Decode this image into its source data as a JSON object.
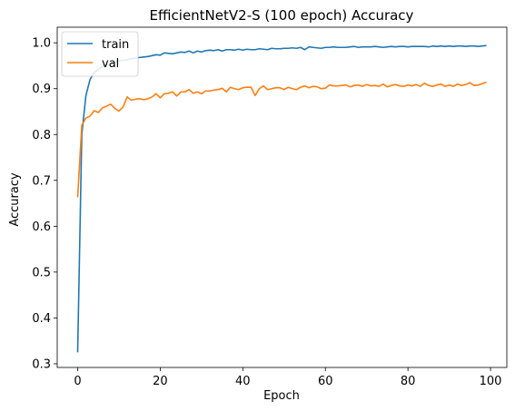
{
  "chart_data": {
    "type": "line",
    "title": "EfficientNetV2-S (100 epoch) Accuracy",
    "xlabel": "Epoch",
    "ylabel": "Accuracy",
    "xlim": [
      -4.95,
      103.95
    ],
    "ylim": [
      0.292,
      1.034
    ],
    "x_ticks": [
      0,
      20,
      40,
      60,
      80,
      100
    ],
    "y_ticks": [
      0.3,
      0.4,
      0.5,
      0.6,
      0.7,
      0.8,
      0.9,
      1.0
    ],
    "x_tick_labels": [
      "0",
      "20",
      "40",
      "60",
      "80",
      "100"
    ],
    "y_tick_labels": [
      "0.3",
      "0.4",
      "0.5",
      "0.6",
      "0.7",
      "0.8",
      "0.9",
      "1.0"
    ],
    "grid": false,
    "legend_position": "top-left",
    "series": [
      {
        "name": "train",
        "color": "#1f77b4",
        "values": [
          0.325,
          0.8,
          0.885,
          0.92,
          0.935,
          0.942,
          0.948,
          0.952,
          0.955,
          0.958,
          0.96,
          0.962,
          0.963,
          0.965,
          0.967,
          0.968,
          0.969,
          0.97,
          0.972,
          0.974,
          0.973,
          0.978,
          0.977,
          0.976,
          0.978,
          0.98,
          0.979,
          0.982,
          0.978,
          0.982,
          0.98,
          0.983,
          0.984,
          0.983,
          0.985,
          0.982,
          0.985,
          0.985,
          0.984,
          0.986,
          0.984,
          0.986,
          0.985,
          0.985,
          0.987,
          0.986,
          0.985,
          0.988,
          0.987,
          0.987,
          0.988,
          0.988,
          0.989,
          0.988,
          0.99,
          0.985,
          0.991,
          0.99,
          0.989,
          0.988,
          0.99,
          0.99,
          0.991,
          0.99,
          0.99,
          0.99,
          0.991,
          0.992,
          0.99,
          0.991,
          0.991,
          0.991,
          0.992,
          0.991,
          0.99,
          0.991,
          0.992,
          0.991,
          0.992,
          0.992,
          0.991,
          0.992,
          0.992,
          0.992,
          0.992,
          0.991,
          0.993,
          0.992,
          0.993,
          0.992,
          0.993,
          0.992,
          0.993,
          0.993,
          0.992,
          0.993,
          0.993,
          0.992,
          0.993,
          0.994
        ]
      },
      {
        "name": "val",
        "color": "#ff7f0e",
        "values": [
          0.663,
          0.82,
          0.836,
          0.84,
          0.852,
          0.848,
          0.858,
          0.862,
          0.866,
          0.857,
          0.851,
          0.86,
          0.882,
          0.875,
          0.877,
          0.878,
          0.876,
          0.878,
          0.882,
          0.889,
          0.88,
          0.889,
          0.89,
          0.893,
          0.884,
          0.893,
          0.893,
          0.898,
          0.89,
          0.893,
          0.889,
          0.895,
          0.895,
          0.897,
          0.898,
          0.901,
          0.893,
          0.903,
          0.9,
          0.898,
          0.902,
          0.903,
          0.903,
          0.885,
          0.9,
          0.906,
          0.898,
          0.9,
          0.902,
          0.902,
          0.898,
          0.903,
          0.9,
          0.898,
          0.903,
          0.906,
          0.902,
          0.905,
          0.904,
          0.9,
          0.901,
          0.908,
          0.906,
          0.906,
          0.907,
          0.908,
          0.904,
          0.907,
          0.908,
          0.905,
          0.909,
          0.906,
          0.907,
          0.905,
          0.91,
          0.904,
          0.907,
          0.909,
          0.906,
          0.905,
          0.908,
          0.906,
          0.909,
          0.905,
          0.912,
          0.907,
          0.905,
          0.908,
          0.91,
          0.905,
          0.908,
          0.905,
          0.91,
          0.907,
          0.909,
          0.913,
          0.907,
          0.908,
          0.911,
          0.914
        ]
      }
    ]
  }
}
